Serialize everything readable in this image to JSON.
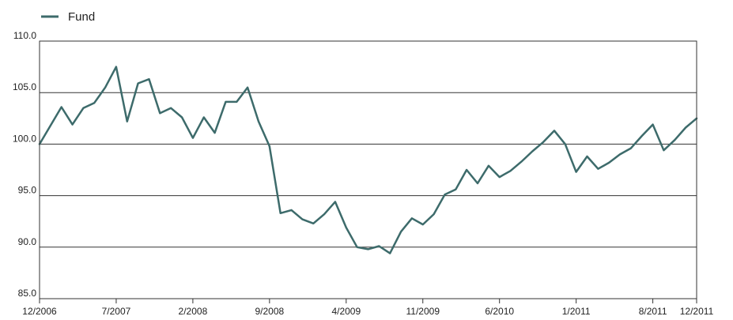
{
  "chart_data": {
    "type": "line",
    "title": "",
    "xlabel": "",
    "ylabel": "",
    "ylim": [
      85,
      110
    ],
    "yticks": [
      85,
      90,
      95,
      100,
      105,
      110
    ],
    "ytick_labels": [
      "85.0",
      "90.0",
      "95.0",
      "100.0",
      "105.0",
      "110.0"
    ],
    "xlim": [
      "2006-12",
      "2011-12"
    ],
    "xticks": [
      "2006-12",
      "2007-07",
      "2008-02",
      "2008-09",
      "2009-04",
      "2009-11",
      "2010-06",
      "2011-01",
      "2011-08",
      "2011-12"
    ],
    "xtick_labels": [
      "12/2006",
      "7/2007",
      "2/2008",
      "9/2008",
      "4/2009",
      "11/2009",
      "6/2010",
      "1/2011",
      "8/2011",
      "12/2011"
    ],
    "grid": "horizontal",
    "legend": {
      "position": "top-left"
    },
    "colors": {
      "series": "#3d6b6b",
      "grid": "#333333",
      "frame": "#333333"
    },
    "series": [
      {
        "name": "Fund",
        "x": [
          "2006-12",
          "2007-01",
          "2007-02",
          "2007-03",
          "2007-04",
          "2007-05",
          "2007-06",
          "2007-07",
          "2007-08",
          "2007-09",
          "2007-10",
          "2007-11",
          "2007-12",
          "2008-01",
          "2008-02",
          "2008-03",
          "2008-04",
          "2008-05",
          "2008-06",
          "2008-07",
          "2008-08",
          "2008-09",
          "2008-10",
          "2008-11",
          "2008-12",
          "2009-01",
          "2009-02",
          "2009-03",
          "2009-04",
          "2009-05",
          "2009-06",
          "2009-07",
          "2009-08",
          "2009-09",
          "2009-10",
          "2009-11",
          "2009-12",
          "2010-01",
          "2010-02",
          "2010-03",
          "2010-04",
          "2010-05",
          "2010-06",
          "2010-07",
          "2010-08",
          "2010-09",
          "2010-10",
          "2010-11",
          "2010-12",
          "2011-01",
          "2011-02",
          "2011-03",
          "2011-04",
          "2011-05",
          "2011-06",
          "2011-07",
          "2011-08",
          "2011-09",
          "2011-10",
          "2011-11",
          "2011-12"
        ],
        "values": [
          100.0,
          101.8,
          103.6,
          101.9,
          103.5,
          104.0,
          105.5,
          107.5,
          102.2,
          105.9,
          106.3,
          103.0,
          103.5,
          102.6,
          100.6,
          102.6,
          101.1,
          104.1,
          104.1,
          105.5,
          102.2,
          99.8,
          93.3,
          93.6,
          92.7,
          92.3,
          93.2,
          94.4,
          91.9,
          90.0,
          89.8,
          90.1,
          89.4,
          91.5,
          92.8,
          92.2,
          93.2,
          95.1,
          95.6,
          97.5,
          96.2,
          97.9,
          96.8,
          97.4,
          98.3,
          99.3,
          100.2,
          101.3,
          100.0,
          97.3,
          98.8,
          97.6,
          98.2,
          99.0,
          99.6,
          100.8,
          101.9,
          99.4,
          100.4,
          101.6,
          102.5
        ]
      }
    ]
  }
}
